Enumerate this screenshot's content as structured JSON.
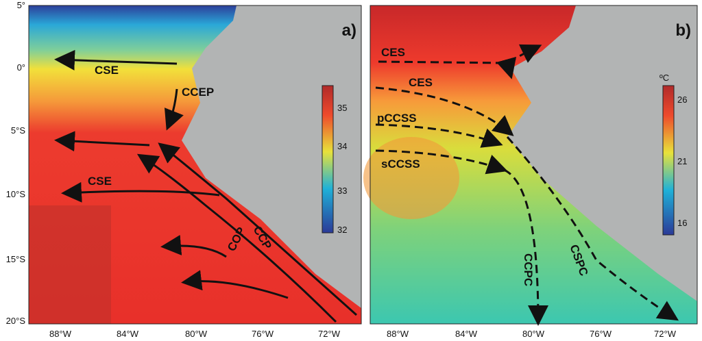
{
  "lat_labels": [
    "5°",
    "0°",
    "5°S",
    "10°S",
    "15°S",
    "20°S"
  ],
  "lon_labels": [
    "88°W",
    "84°W",
    "80°W",
    "76°W",
    "72°W"
  ],
  "panels": [
    {
      "label": "a)",
      "currents": [
        "CSE",
        "CCEP",
        "CSE",
        "COP",
        "CCP"
      ],
      "colorbar": {
        "ticks": [
          "32",
          "33",
          "34",
          "35"
        ]
      }
    },
    {
      "label": "b)",
      "currents": [
        "CES",
        "CES",
        "pCCSS",
        "sCCSS",
        "CCPC",
        "CSPC"
      ],
      "colorbar": {
        "unit": "ºC",
        "ticks": [
          "16",
          "21",
          "26"
        ]
      }
    }
  ]
}
